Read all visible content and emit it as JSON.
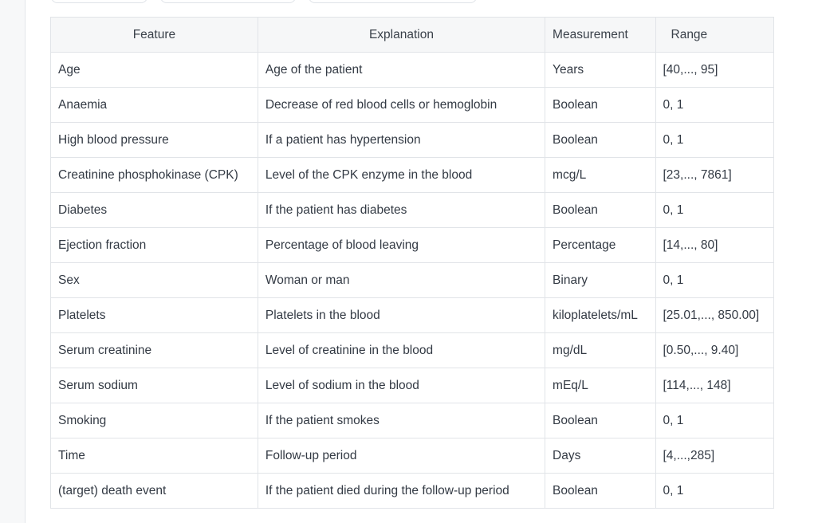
{
  "table": {
    "headers": {
      "feature": "Feature",
      "explanation": "Explanation",
      "measurement": "Measurement",
      "range": "Range"
    },
    "rows": [
      {
        "feature": "Age",
        "explanation": "Age of the patient",
        "measurement": "Years",
        "range": "[40,..., 95]"
      },
      {
        "feature": "Anaemia",
        "explanation": "Decrease of red blood cells or hemoglobin",
        "measurement": "Boolean",
        "range": "0, 1"
      },
      {
        "feature": "High blood pressure",
        "explanation": "If a patient has hypertension",
        "measurement": "Boolean",
        "range": "0, 1"
      },
      {
        "feature": "Creatinine phosphokinase (CPK)",
        "explanation": "Level of the CPK enzyme in the blood",
        "measurement": "mcg/L",
        "range": "[23,..., 7861]"
      },
      {
        "feature": "Diabetes",
        "explanation": "If the patient has diabetes",
        "measurement": "Boolean",
        "range": "0, 1"
      },
      {
        "feature": "Ejection fraction",
        "explanation": "Percentage of blood leaving",
        "measurement": "Percentage",
        "range": "[14,..., 80]"
      },
      {
        "feature": "Sex",
        "explanation": "Woman or man",
        "measurement": "Binary",
        "range": "0, 1"
      },
      {
        "feature": "Platelets",
        "explanation": "Platelets in the blood",
        "measurement": "kiloplatelets/mL",
        "range": "[25.01,..., 850.00]"
      },
      {
        "feature": "Serum creatinine",
        "explanation": "Level of creatinine in the blood",
        "measurement": "mg/dL",
        "range": "[0.50,..., 9.40]"
      },
      {
        "feature": "Serum sodium",
        "explanation": "Level of sodium in the blood",
        "measurement": "mEq/L",
        "range": "[114,..., 148]"
      },
      {
        "feature": "Smoking",
        "explanation": "If the patient smokes",
        "measurement": "Boolean",
        "range": "0, 1"
      },
      {
        "feature": "Time",
        "explanation": "Follow-up period",
        "measurement": "Days",
        "range": "[4,...,285]"
      },
      {
        "feature": "(target) death event",
        "explanation": "If the patient died during the follow-up period",
        "measurement": "Boolean",
        "range": "0, 1"
      }
    ]
  }
}
